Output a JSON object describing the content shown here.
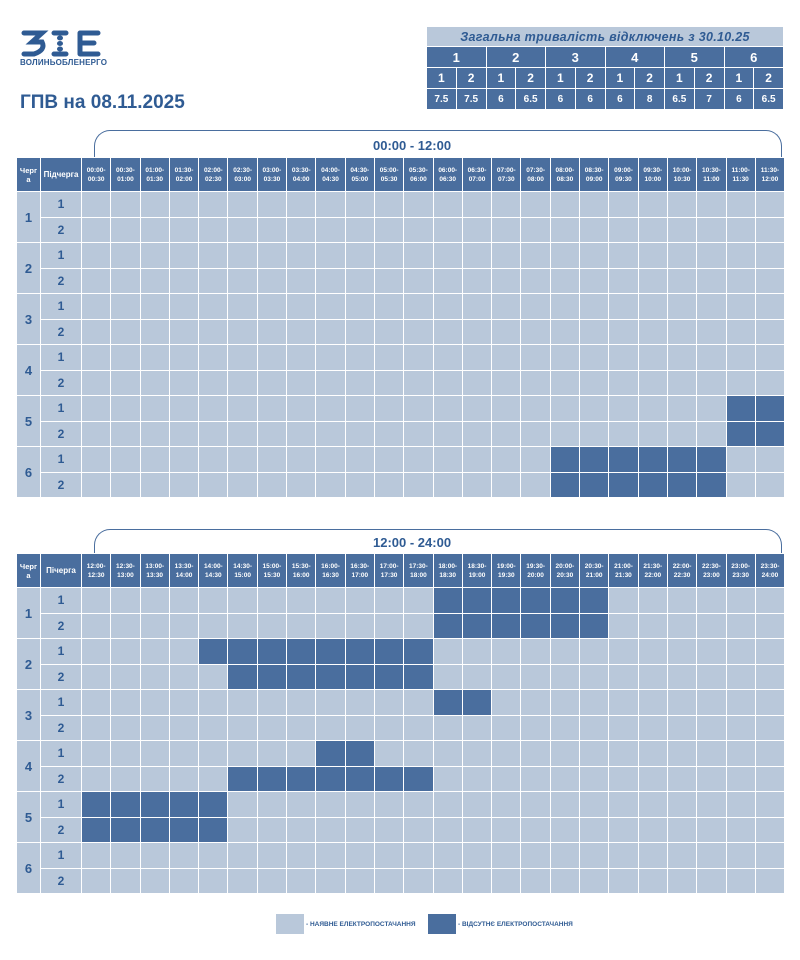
{
  "header": {
    "logo_text": "ВОЛИНЬОБЛЕНЕРГО",
    "title": "ГПВ на 08.11.2025"
  },
  "summary": {
    "title": "Загальна тривалість відключень з 30.10.25",
    "queues": [
      "1",
      "2",
      "3",
      "4",
      "5",
      "6"
    ],
    "subqueues": [
      "1",
      "2"
    ],
    "values": [
      "7.5",
      "7.5",
      "6",
      "6.5",
      "6",
      "6",
      "6",
      "8",
      "6.5",
      "7",
      "6",
      "6.5"
    ]
  },
  "grids": [
    {
      "period_label": "00:00 - 12:00",
      "col_queue": "Черг а",
      "col_subqueue": "Підчерга",
      "time_slots": [
        "00:00- 00:30",
        "00:30- 01:00",
        "01:00- 01:30",
        "01:30- 02:00",
        "02:00- 02:30",
        "02:30- 03:00",
        "03:00- 03:30",
        "03:30- 04:00",
        "04:00- 04:30",
        "04:30- 05:00",
        "05:00- 05:30",
        "05:30- 06:00",
        "06:00- 06:30",
        "06:30- 07:00",
        "07:00- 07:30",
        "07:30- 08:00",
        "08:00- 08:30",
        "08:30- 09:00",
        "09:00- 09:30",
        "09:30- 10:00",
        "10:00- 10:30",
        "10:30- 11:00",
        "11:00- 11:30",
        "11:30- 12:00"
      ],
      "rows": [
        {
          "queue": "1",
          "sub": "1",
          "outages": []
        },
        {
          "queue": "1",
          "sub": "2",
          "outages": []
        },
        {
          "queue": "2",
          "sub": "1",
          "outages": []
        },
        {
          "queue": "2",
          "sub": "2",
          "outages": []
        },
        {
          "queue": "3",
          "sub": "1",
          "outages": []
        },
        {
          "queue": "3",
          "sub": "2",
          "outages": []
        },
        {
          "queue": "4",
          "sub": "1",
          "outages": []
        },
        {
          "queue": "4",
          "sub": "2",
          "outages": []
        },
        {
          "queue": "5",
          "sub": "1",
          "outages": [
            22,
            23
          ]
        },
        {
          "queue": "5",
          "sub": "2",
          "outages": [
            22,
            23
          ]
        },
        {
          "queue": "6",
          "sub": "1",
          "outages": [
            16,
            17,
            18,
            19,
            20,
            21
          ]
        },
        {
          "queue": "6",
          "sub": "2",
          "outages": [
            16,
            17,
            18,
            19,
            20,
            21
          ]
        }
      ]
    },
    {
      "period_label": "12:00 - 24:00",
      "col_queue": "Черг а",
      "col_subqueue": "Пічерга",
      "time_slots": [
        "12:00- 12:30",
        "12:30- 13:00",
        "13:00- 13:30",
        "13:30- 14:00",
        "14:00- 14:30",
        "14:30- 15:00",
        "15:00- 15:30",
        "15:30- 16:00",
        "16:00- 16:30",
        "16:30- 17:00",
        "17:00- 17:30",
        "17:30- 18:00",
        "18:00- 18:30",
        "18:30- 19:00",
        "19:00- 19:30",
        "19:30- 20:00",
        "20:00- 20:30",
        "20:30- 21:00",
        "21:00- 21:30",
        "21:30- 22:00",
        "22:00- 22:30",
        "22:30- 23:00",
        "23:00- 23:30",
        "23:30- 24:00"
      ],
      "rows": [
        {
          "queue": "1",
          "sub": "1",
          "outages": [
            12,
            13,
            14,
            15,
            16,
            17
          ]
        },
        {
          "queue": "1",
          "sub": "2",
          "outages": [
            12,
            13,
            14,
            15,
            16,
            17
          ]
        },
        {
          "queue": "2",
          "sub": "1",
          "outages": [
            4,
            5,
            6,
            7,
            8,
            9,
            10,
            11
          ]
        },
        {
          "queue": "2",
          "sub": "2",
          "outages": [
            5,
            6,
            7,
            8,
            9,
            10,
            11
          ]
        },
        {
          "queue": "3",
          "sub": "1",
          "outages": [
            12,
            13
          ]
        },
        {
          "queue": "3",
          "sub": "2",
          "outages": []
        },
        {
          "queue": "4",
          "sub": "1",
          "outages": [
            8,
            9
          ]
        },
        {
          "queue": "4",
          "sub": "2",
          "outages": [
            5,
            6,
            7,
            8,
            9,
            10,
            11
          ]
        },
        {
          "queue": "5",
          "sub": "1",
          "outages": [
            0,
            1,
            2,
            3,
            4
          ]
        },
        {
          "queue": "5",
          "sub": "2",
          "outages": [
            0,
            1,
            2,
            3,
            4
          ]
        },
        {
          "queue": "6",
          "sub": "1",
          "outages": []
        },
        {
          "queue": "6",
          "sub": "2",
          "outages": []
        }
      ]
    }
  ],
  "legend": {
    "available_label": "- НАЯВНЕ ЕЛЕКТРОПОСТАЧАННЯ",
    "absent_label": "- ВІДСУТНЄ ЕЛЕКТРОПОСТАЧАННЯ"
  },
  "colors": {
    "available": "#b9c8da",
    "absent": "#4a6e9e",
    "brand": "#2f5b93"
  }
}
